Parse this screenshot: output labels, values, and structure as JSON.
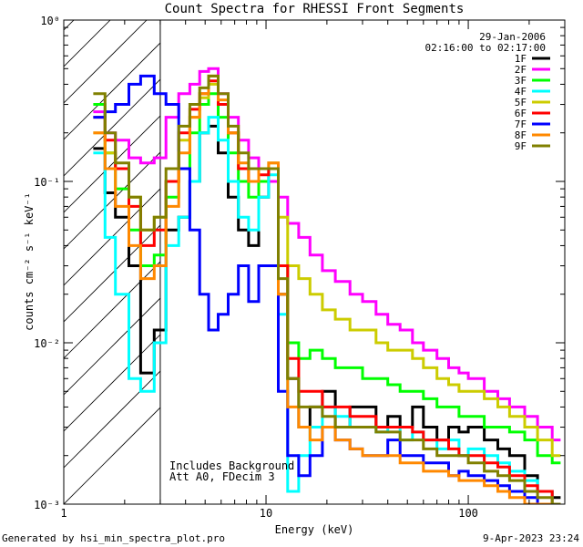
{
  "chart_data": {
    "type": "line",
    "title": "Count Spectra for RHESSI Front Segments",
    "xlabel": "Energy (keV)",
    "ylabel": "counts cm⁻² s⁻¹ keV⁻¹",
    "xscale": "log",
    "yscale": "log",
    "xlim": [
      1,
      300
    ],
    "ylim": [
      0.001,
      1
    ],
    "x_ticks": [
      {
        "value": 1,
        "label": "1"
      },
      {
        "value": 10,
        "label": "10"
      },
      {
        "value": 100,
        "label": "100"
      }
    ],
    "y_ticks": [
      {
        "value": 0.001,
        "label": "10⁻³"
      },
      {
        "value": 0.01,
        "label": "10⁻²"
      },
      {
        "value": 0.1,
        "label": "10⁻¹"
      },
      {
        "value": 1,
        "label": "10⁰"
      }
    ],
    "attenuator_region_keV": [
      1,
      3
    ],
    "info": {
      "date": "29-Jan-2006",
      "time_range": "02:16:00 to 02:17:00"
    },
    "annotations": [
      "Includes Background",
      "Att A0, FDecim 3"
    ],
    "series": [
      {
        "name": "1F",
        "color": "#000000",
        "x": [
          1.4,
          1.6,
          1.8,
          2.1,
          2.4,
          2.8,
          3.2,
          3.7,
          4.2,
          4.7,
          5.2,
          5.8,
          6.5,
          7.3,
          8.2,
          9.2,
          10.3,
          11.5,
          12.8,
          14.5,
          16.5,
          19,
          22,
          26,
          30,
          35,
          40,
          46,
          53,
          60,
          70,
          80,
          90,
          100,
          120,
          140,
          160,
          190,
          220,
          260
        ],
        "y": [
          0.16,
          0.085,
          0.06,
          0.03,
          0.0065,
          0.012,
          0.05,
          0.06,
          0.1,
          0.2,
          0.22,
          0.15,
          0.08,
          0.05,
          0.04,
          0.08,
          0.1,
          0.02,
          0.006,
          0.003,
          0.004,
          0.005,
          0.003,
          0.004,
          0.004,
          0.003,
          0.0035,
          0.003,
          0.004,
          0.003,
          0.0025,
          0.003,
          0.0028,
          0.003,
          0.0025,
          0.0022,
          0.002,
          0.0015,
          0.0012,
          0.0011
        ]
      },
      {
        "name": "2F",
        "color": "#ff00ff",
        "x": [
          1.4,
          1.6,
          1.8,
          2.1,
          2.4,
          2.8,
          3.2,
          3.7,
          4.2,
          4.7,
          5.2,
          5.8,
          6.5,
          7.3,
          8.2,
          9.2,
          10.3,
          11.5,
          12.8,
          14.5,
          16.5,
          19,
          22,
          26,
          30,
          35,
          40,
          46,
          53,
          60,
          70,
          80,
          90,
          100,
          120,
          140,
          160,
          190,
          220,
          260
        ],
        "y": [
          0.27,
          0.2,
          0.18,
          0.14,
          0.13,
          0.14,
          0.25,
          0.35,
          0.4,
          0.48,
          0.5,
          0.35,
          0.25,
          0.18,
          0.14,
          0.12,
          0.1,
          0.08,
          0.055,
          0.045,
          0.035,
          0.028,
          0.024,
          0.02,
          0.018,
          0.015,
          0.013,
          0.012,
          0.01,
          0.009,
          0.008,
          0.007,
          0.0065,
          0.006,
          0.005,
          0.0045,
          0.004,
          0.0035,
          0.003,
          0.0025
        ]
      },
      {
        "name": "3F",
        "color": "#00ff00",
        "x": [
          1.4,
          1.6,
          1.8,
          2.1,
          2.4,
          2.8,
          3.2,
          3.7,
          4.2,
          4.7,
          5.2,
          5.8,
          6.5,
          7.3,
          8.2,
          9.2,
          10.3,
          11.5,
          12.8,
          14.5,
          16.5,
          19,
          22,
          26,
          30,
          35,
          40,
          46,
          53,
          60,
          70,
          80,
          90,
          100,
          120,
          140,
          160,
          190,
          220,
          260
        ],
        "y": [
          0.3,
          0.15,
          0.09,
          0.05,
          0.03,
          0.035,
          0.08,
          0.12,
          0.2,
          0.3,
          0.35,
          0.25,
          0.15,
          0.1,
          0.08,
          0.1,
          0.12,
          0.03,
          0.01,
          0.008,
          0.009,
          0.008,
          0.007,
          0.007,
          0.006,
          0.006,
          0.0055,
          0.005,
          0.005,
          0.0045,
          0.004,
          0.004,
          0.0035,
          0.0035,
          0.003,
          0.003,
          0.0028,
          0.0025,
          0.002,
          0.0018
        ]
      },
      {
        "name": "4F",
        "color": "#00ffff",
        "x": [
          1.4,
          1.6,
          1.8,
          2.1,
          2.4,
          2.8,
          3.2,
          3.7,
          4.2,
          4.7,
          5.2,
          5.8,
          6.5,
          7.3,
          8.2,
          9.2,
          10.3,
          11.5,
          12.8,
          14.5,
          16.5,
          19,
          22,
          26,
          30,
          35,
          40,
          46,
          53,
          60,
          70,
          80,
          90,
          100,
          120,
          140,
          160,
          190,
          220,
          260
        ],
        "y": [
          0.15,
          0.045,
          0.02,
          0.006,
          0.005,
          0.01,
          0.04,
          0.06,
          0.1,
          0.2,
          0.25,
          0.18,
          0.1,
          0.06,
          0.05,
          0.08,
          0.11,
          0.015,
          0.0012,
          0.002,
          0.003,
          0.004,
          0.0035,
          0.003,
          0.003,
          0.0028,
          0.003,
          0.0025,
          0.0028,
          0.0025,
          0.0022,
          0.0025,
          0.002,
          0.0022,
          0.002,
          0.0018,
          0.0016,
          0.0014,
          0.0012,
          0.001
        ]
      },
      {
        "name": "5F",
        "color": "#cccc00",
        "x": [
          1.4,
          1.6,
          1.8,
          2.1,
          2.4,
          2.8,
          3.2,
          3.7,
          4.2,
          4.7,
          5.2,
          5.8,
          6.5,
          7.3,
          8.2,
          9.2,
          10.3,
          11.5,
          12.8,
          14.5,
          16.5,
          19,
          22,
          26,
          30,
          35,
          40,
          46,
          53,
          60,
          70,
          80,
          90,
          100,
          120,
          140,
          160,
          190,
          220,
          260
        ],
        "y": [
          0.2,
          0.15,
          0.12,
          0.08,
          0.05,
          0.06,
          0.1,
          0.18,
          0.25,
          0.33,
          0.4,
          0.3,
          0.2,
          0.12,
          0.1,
          0.12,
          0.13,
          0.06,
          0.03,
          0.025,
          0.02,
          0.016,
          0.014,
          0.012,
          0.012,
          0.01,
          0.009,
          0.009,
          0.008,
          0.007,
          0.006,
          0.0055,
          0.005,
          0.005,
          0.0045,
          0.004,
          0.0035,
          0.003,
          0.0025,
          0.002
        ]
      },
      {
        "name": "6F",
        "color": "#ff0000",
        "x": [
          1.4,
          1.6,
          1.8,
          2.1,
          2.4,
          2.8,
          3.2,
          3.7,
          4.2,
          4.7,
          5.2,
          5.8,
          6.5,
          7.3,
          8.2,
          9.2,
          10.3,
          11.5,
          12.8,
          14.5,
          16.5,
          19,
          22,
          26,
          30,
          35,
          40,
          46,
          53,
          60,
          70,
          80,
          90,
          100,
          120,
          140,
          160,
          190,
          220,
          260
        ],
        "y": [
          0.25,
          0.18,
          0.12,
          0.07,
          0.04,
          0.05,
          0.1,
          0.2,
          0.28,
          0.35,
          0.42,
          0.3,
          0.2,
          0.12,
          0.1,
          0.11,
          0.12,
          0.03,
          0.008,
          0.005,
          0.005,
          0.004,
          0.004,
          0.0035,
          0.0035,
          0.003,
          0.003,
          0.003,
          0.0028,
          0.0025,
          0.0025,
          0.0022,
          0.002,
          0.002,
          0.0018,
          0.0017,
          0.0015,
          0.0013,
          0.0012,
          0.001
        ]
      },
      {
        "name": "7F",
        "color": "#0000ff",
        "x": [
          1.4,
          1.6,
          1.8,
          2.1,
          2.4,
          2.8,
          3.2,
          3.7,
          4.2,
          4.7,
          5.2,
          5.8,
          6.5,
          7.3,
          8.2,
          9.2,
          10.3,
          11.5,
          12.8,
          14.5,
          16.5,
          19,
          22,
          26,
          30,
          35,
          40,
          46,
          53,
          60,
          70,
          80,
          90,
          100,
          120,
          140,
          160,
          190,
          220,
          260
        ],
        "y": [
          0.25,
          0.27,
          0.3,
          0.4,
          0.45,
          0.35,
          0.3,
          0.12,
          0.05,
          0.02,
          0.012,
          0.015,
          0.02,
          0.03,
          0.018,
          0.03,
          0.03,
          0.005,
          0.002,
          0.0015,
          0.002,
          0.003,
          0.0025,
          0.0022,
          0.002,
          0.002,
          0.0025,
          0.002,
          0.002,
          0.0018,
          0.0018,
          0.0015,
          0.0016,
          0.0015,
          0.0014,
          0.0013,
          0.0012,
          0.0011,
          0.001,
          0.001
        ]
      },
      {
        "name": "8F",
        "color": "#ff8800",
        "x": [
          1.4,
          1.6,
          1.8,
          2.1,
          2.4,
          2.8,
          3.2,
          3.7,
          4.2,
          4.7,
          5.2,
          5.8,
          6.5,
          7.3,
          8.2,
          9.2,
          10.3,
          11.5,
          12.8,
          14.5,
          16.5,
          19,
          22,
          26,
          30,
          35,
          40,
          46,
          53,
          60,
          70,
          80,
          90,
          100,
          120,
          140,
          160,
          190,
          220,
          260
        ],
        "y": [
          0.2,
          0.12,
          0.07,
          0.04,
          0.025,
          0.03,
          0.07,
          0.15,
          0.25,
          0.35,
          0.45,
          0.32,
          0.2,
          0.13,
          0.1,
          0.12,
          0.13,
          0.02,
          0.004,
          0.003,
          0.0025,
          0.003,
          0.0025,
          0.0022,
          0.002,
          0.002,
          0.002,
          0.0018,
          0.0018,
          0.0016,
          0.0016,
          0.0015,
          0.0014,
          0.0014,
          0.0013,
          0.0012,
          0.0011,
          0.001,
          0.001,
          0.001
        ]
      },
      {
        "name": "9F",
        "color": "#808000",
        "x": [
          1.4,
          1.6,
          1.8,
          2.1,
          2.4,
          2.8,
          3.2,
          3.7,
          4.2,
          4.7,
          5.2,
          5.8,
          6.5,
          7.3,
          8.2,
          9.2,
          10.3,
          11.5,
          12.8,
          14.5,
          16.5,
          19,
          22,
          26,
          30,
          35,
          40,
          46,
          53,
          60,
          70,
          80,
          90,
          100,
          120,
          140,
          160,
          190,
          220,
          260
        ],
        "y": [
          0.35,
          0.2,
          0.13,
          0.08,
          0.05,
          0.06,
          0.12,
          0.22,
          0.3,
          0.38,
          0.45,
          0.35,
          0.22,
          0.15,
          0.12,
          0.12,
          0.12,
          0.025,
          0.006,
          0.004,
          0.004,
          0.0035,
          0.003,
          0.003,
          0.003,
          0.0028,
          0.0028,
          0.0025,
          0.0025,
          0.0022,
          0.002,
          0.002,
          0.002,
          0.0018,
          0.0016,
          0.0015,
          0.0014,
          0.0012,
          0.0011,
          0.001
        ]
      }
    ]
  },
  "footer": {
    "left": "Generated by hsi_min_spectra_plot.pro",
    "right": "9-Apr-2023 23:24"
  }
}
